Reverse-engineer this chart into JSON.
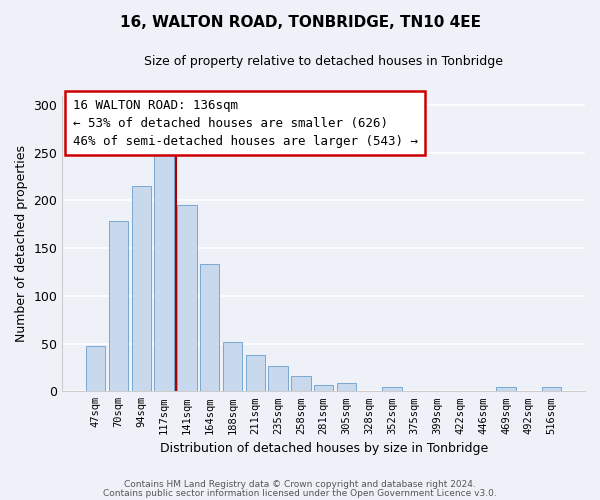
{
  "title": "16, WALTON ROAD, TONBRIDGE, TN10 4EE",
  "subtitle": "Size of property relative to detached houses in Tonbridge",
  "xlabel": "Distribution of detached houses by size in Tonbridge",
  "ylabel": "Number of detached properties",
  "bar_labels": [
    "47sqm",
    "70sqm",
    "94sqm",
    "117sqm",
    "141sqm",
    "164sqm",
    "188sqm",
    "211sqm",
    "235sqm",
    "258sqm",
    "281sqm",
    "305sqm",
    "328sqm",
    "352sqm",
    "375sqm",
    "399sqm",
    "422sqm",
    "446sqm",
    "469sqm",
    "492sqm",
    "516sqm"
  ],
  "bar_values": [
    48,
    178,
    215,
    250,
    195,
    133,
    52,
    38,
    27,
    16,
    7,
    9,
    0,
    4,
    0,
    0,
    0,
    0,
    5,
    0,
    4
  ],
  "bar_color": "#c8d9ed",
  "bar_edge_color": "#7aa8d0",
  "vline_x": 3.5,
  "vline_color": "#aa0000",
  "annotation_title": "16 WALTON ROAD: 136sqm",
  "annotation_line1": "← 53% of detached houses are smaller (626)",
  "annotation_line2": "46% of semi-detached houses are larger (543) →",
  "annotation_box_color": "#ffffff",
  "annotation_box_edge": "#cc0000",
  "ylim": [
    0,
    310
  ],
  "yticks": [
    0,
    50,
    100,
    150,
    200,
    250,
    300
  ],
  "footer1": "Contains HM Land Registry data © Crown copyright and database right 2024.",
  "footer2": "Contains public sector information licensed under the Open Government Licence v3.0.",
  "background_color": "#eef2f8",
  "grid_color": "#ffffff",
  "title_fontsize": 11,
  "subtitle_fontsize": 9
}
